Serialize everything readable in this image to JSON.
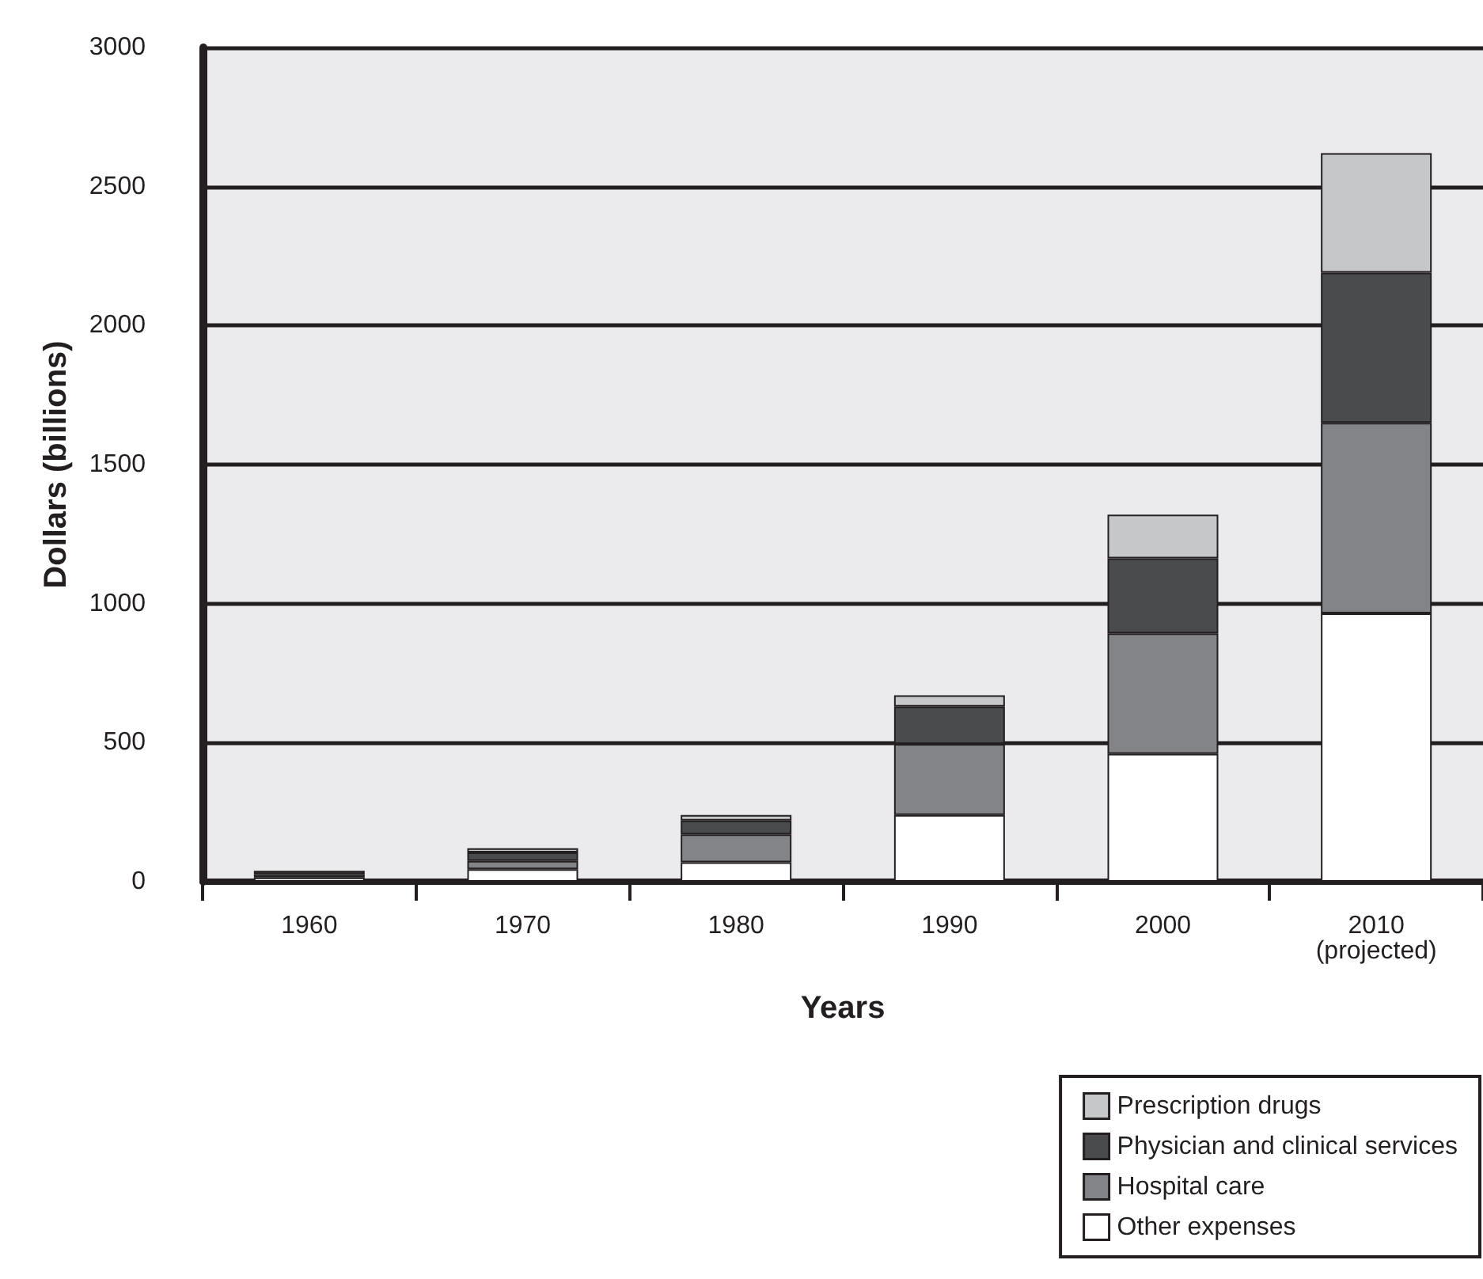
{
  "chart_data": {
    "type": "bar",
    "stacked": true,
    "xlabel": "Years",
    "ylabel": "Dollars (billions)",
    "categories": [
      "1960",
      "1970",
      "1980",
      "1990",
      "2000",
      "2010\n(projected)"
    ],
    "series": [
      {
        "name": "Other expenses",
        "color": "#ffffff",
        "values": [
          15,
          45,
          70,
          240,
          460,
          965
        ]
      },
      {
        "name": "Hospital care",
        "color": "#838487",
        "values": [
          12,
          30,
          100,
          255,
          433,
          685
        ]
      },
      {
        "name": "Physician and clinical services",
        "color": "#4a4b4d",
        "values": [
          12,
          30,
          50,
          135,
          270,
          540
        ]
      },
      {
        "name": "Prescription drugs",
        "color": "#c6c7c9",
        "values": [
          null,
          15,
          20,
          40,
          157,
          430
        ]
      }
    ],
    "ylim": [
      0,
      3000
    ],
    "yticks": [
      0,
      500,
      1000,
      1500,
      2000,
      2500,
      3000
    ],
    "grid": "y",
    "legend": "bottom right"
  }
}
